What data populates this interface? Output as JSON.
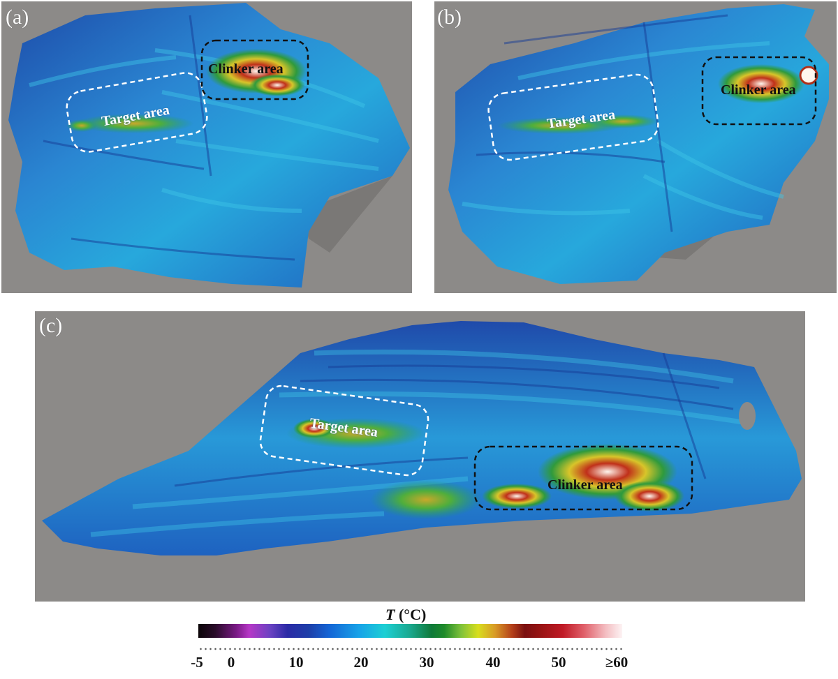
{
  "panels": {
    "a": {
      "letter": "(a)",
      "target_label": "Target area",
      "clinker_label": "Clinker area"
    },
    "b": {
      "letter": "(b)",
      "target_label": "Target area",
      "clinker_label": "Clinker area"
    },
    "c": {
      "letter": "(c)",
      "target_label": "Target area",
      "clinker_label": "Clinker area"
    }
  },
  "legend": {
    "title_var": "T",
    "title_unit": "(°C)",
    "ticks": [
      "-5",
      "0",
      "10",
      "20",
      "30",
      "40",
      "50",
      "≥60"
    ]
  },
  "colors": {
    "background": "#8c8a88",
    "terrain_dark": "#1f4fb0",
    "terrain_light": "#2aa6dc",
    "warm_green": "#2f9a3c",
    "hot_yellow": "#d8c52a",
    "hot_red": "#b0301a",
    "hot_white": "#fff6ee",
    "target_box": "#ffffff",
    "clinker_box": "#111111"
  }
}
